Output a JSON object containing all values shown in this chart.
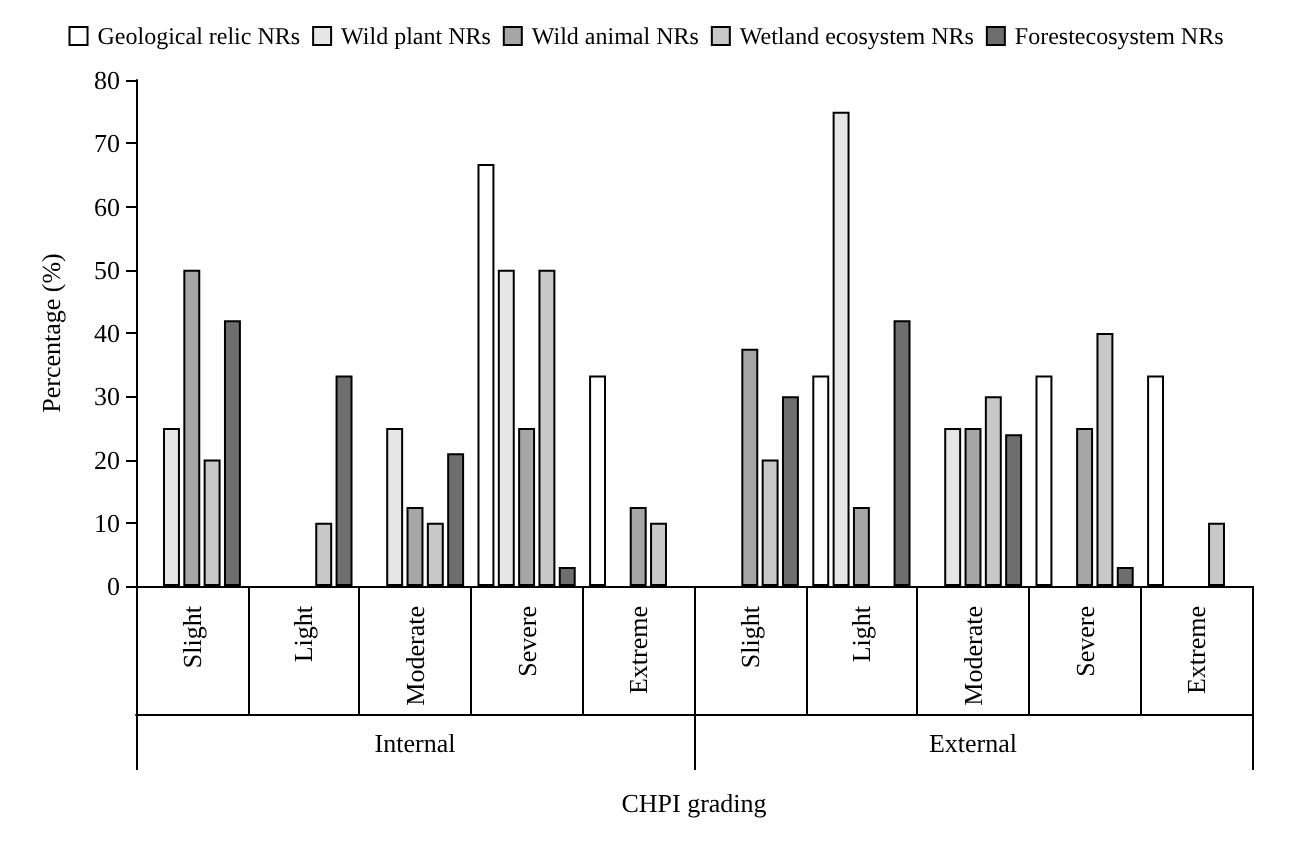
{
  "chart_data": {
    "type": "bar",
    "categories": [
      "Slight",
      "Light",
      "Moderate",
      "Severe",
      "Extreme",
      "Slight",
      "Light",
      "Moderate",
      "Severe",
      "Extreme"
    ],
    "series": [
      {
        "name": "Geological relic NRs",
        "color": "#ffffff",
        "values": [
          null,
          null,
          null,
          66.7,
          33.3,
          null,
          33.3,
          null,
          33.3,
          33.3
        ]
      },
      {
        "name": "Wild plant NRs",
        "color": "#e6e6e6",
        "values": [
          25,
          null,
          25,
          50,
          null,
          null,
          75,
          25,
          null,
          null
        ]
      },
      {
        "name": "Wild animal NRs",
        "color": "#a6a6a6",
        "values": [
          50,
          null,
          12.5,
          25,
          12.5,
          37.5,
          12.5,
          25,
          25,
          null
        ]
      },
      {
        "name": "Wetland ecosystem NRs",
        "color": "#c8c8c8",
        "values": [
          20,
          10,
          10,
          50,
          10,
          20,
          null,
          30,
          40,
          10
        ]
      },
      {
        "name": "Forestecosystem NRs",
        "color": "#6e6e6e",
        "values": [
          42,
          33.3,
          21,
          3,
          null,
          30,
          42,
          24,
          3,
          null
        ]
      }
    ],
    "xlabel": "CHPI grading",
    "ylabel": "Percentage (%)",
    "annotations": [
      "Internal",
      "External"
    ],
    "ylim": [
      0,
      80
    ],
    "yticks": [
      0,
      10,
      20,
      30,
      40,
      50,
      60,
      70,
      80
    ],
    "grid": false,
    "legend": "top"
  }
}
